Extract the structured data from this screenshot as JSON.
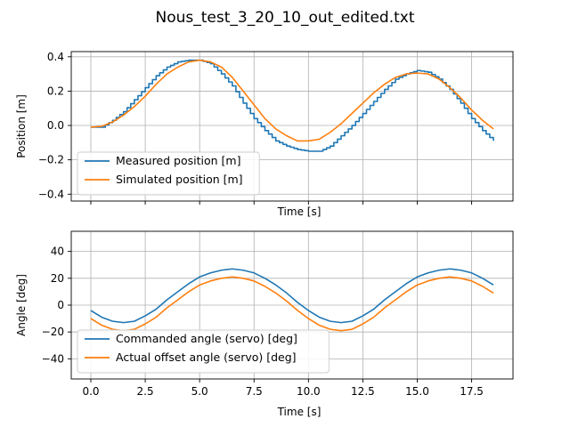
{
  "figure": {
    "title": "Nous_test_3_20_10_out_edited.txt"
  },
  "colors": {
    "series1": "#1f77b4",
    "series2": "#ff7f0e",
    "grid": "#b0b0b0",
    "axes": "#000000"
  },
  "chart_data": [
    {
      "type": "line",
      "xlabel": "Time [s]",
      "ylabel": "Position [m]",
      "xlim": [
        -0.9,
        19.4
      ],
      "ylim": [
        -0.44,
        0.43
      ],
      "xticks": [
        0.0,
        2.5,
        5.0,
        7.5,
        10.0,
        12.5,
        15.0,
        17.5
      ],
      "xtick_labels_visible": false,
      "yticks": [
        -0.4,
        -0.2,
        0.0,
        0.2,
        0.4
      ],
      "ytick_labels": [
        "−0.4",
        "−0.2",
        "0.0",
        "0.2",
        "0.4"
      ],
      "grid": true,
      "legend_position": "lower-left",
      "series": [
        {
          "name": "Measured position [m]",
          "style": "step",
          "x": [
            0.0,
            0.5,
            1.0,
            1.5,
            2.0,
            2.5,
            3.0,
            3.5,
            4.0,
            4.5,
            5.0,
            5.5,
            6.0,
            6.5,
            7.0,
            7.5,
            8.0,
            8.5,
            9.0,
            9.5,
            10.0,
            10.5,
            11.0,
            11.5,
            12.0,
            12.5,
            13.0,
            13.5,
            14.0,
            14.5,
            15.0,
            15.5,
            16.0,
            16.5,
            17.0,
            17.5,
            18.0,
            18.5
          ],
          "y": [
            -0.01,
            -0.01,
            0.03,
            0.08,
            0.15,
            0.22,
            0.29,
            0.34,
            0.37,
            0.38,
            0.38,
            0.36,
            0.3,
            0.23,
            0.13,
            0.04,
            -0.03,
            -0.09,
            -0.12,
            -0.14,
            -0.15,
            -0.15,
            -0.12,
            -0.06,
            0.0,
            0.07,
            0.14,
            0.21,
            0.27,
            0.3,
            0.32,
            0.31,
            0.27,
            0.21,
            0.13,
            0.04,
            -0.03,
            -0.09
          ]
        },
        {
          "name": "Simulated position [m]",
          "style": "line",
          "x": [
            0.0,
            0.5,
            1.0,
            1.5,
            2.0,
            2.5,
            3.0,
            3.5,
            4.0,
            4.5,
            5.0,
            5.5,
            6.0,
            6.5,
            7.0,
            7.5,
            8.0,
            8.5,
            9.0,
            9.5,
            10.0,
            10.5,
            11.0,
            11.5,
            12.0,
            12.5,
            13.0,
            13.5,
            14.0,
            14.5,
            15.0,
            15.5,
            16.0,
            16.5,
            17.0,
            17.5,
            18.0,
            18.5
          ],
          "y": [
            -0.01,
            -0.005,
            0.02,
            0.06,
            0.11,
            0.17,
            0.24,
            0.3,
            0.34,
            0.37,
            0.38,
            0.37,
            0.34,
            0.28,
            0.2,
            0.12,
            0.04,
            -0.02,
            -0.06,
            -0.09,
            -0.09,
            -0.08,
            -0.04,
            0.01,
            0.07,
            0.13,
            0.19,
            0.24,
            0.28,
            0.3,
            0.305,
            0.3,
            0.27,
            0.22,
            0.16,
            0.09,
            0.03,
            -0.02
          ]
        }
      ]
    },
    {
      "type": "line",
      "xlabel": "Time [s]",
      "ylabel": "Angle [deg]",
      "xlim": [
        -0.9,
        19.4
      ],
      "ylim": [
        -55,
        55
      ],
      "xticks": [
        0.0,
        2.5,
        5.0,
        7.5,
        10.0,
        12.5,
        15.0,
        17.5
      ],
      "xtick_labels": [
        "0.0",
        "2.5",
        "5.0",
        "7.5",
        "10.0",
        "12.5",
        "15.0",
        "17.5"
      ],
      "yticks": [
        -40,
        -20,
        0,
        20,
        40
      ],
      "ytick_labels": [
        "−40",
        "−20",
        "0",
        "20",
        "40"
      ],
      "grid": true,
      "legend_position": "lower-left",
      "series": [
        {
          "name": "Commanded angle (servo) [deg]",
          "style": "line",
          "x": [
            0.0,
            0.5,
            1.0,
            1.5,
            2.0,
            2.5,
            3.0,
            3.5,
            4.0,
            4.5,
            5.0,
            5.5,
            6.0,
            6.5,
            7.0,
            7.5,
            8.0,
            8.5,
            9.0,
            9.5,
            10.0,
            10.5,
            11.0,
            11.5,
            12.0,
            12.5,
            13.0,
            13.5,
            14.0,
            14.5,
            15.0,
            15.5,
            16.0,
            16.5,
            17.0,
            17.5,
            18.0,
            18.5
          ],
          "y": [
            -4,
            -9,
            -12,
            -13,
            -12,
            -8,
            -3,
            4,
            10,
            16,
            21,
            24,
            26,
            27,
            26,
            24,
            20,
            15,
            9,
            2,
            -4,
            -9,
            -12,
            -13,
            -12,
            -8,
            -3,
            4,
            10,
            16,
            21,
            24,
            26,
            27,
            26,
            24,
            20,
            15
          ]
        },
        {
          "name": "Actual offset angle (servo) [deg]",
          "style": "line",
          "x": [
            0.0,
            0.5,
            1.0,
            1.5,
            2.0,
            2.5,
            3.0,
            3.5,
            4.0,
            4.5,
            5.0,
            5.5,
            6.0,
            6.5,
            7.0,
            7.5,
            8.0,
            8.5,
            9.0,
            9.5,
            10.0,
            10.5,
            11.0,
            11.5,
            12.0,
            12.5,
            13.0,
            13.5,
            14.0,
            14.5,
            15.0,
            15.5,
            16.0,
            16.5,
            17.0,
            17.5,
            18.0,
            18.5
          ],
          "y": [
            -10,
            -15,
            -18,
            -19,
            -18,
            -14,
            -9,
            -2,
            4,
            10,
            15,
            18,
            20,
            21,
            20,
            18,
            14,
            9,
            3,
            -4,
            -10,
            -15,
            -18,
            -19,
            -18,
            -14,
            -9,
            -2,
            4,
            10,
            15,
            18,
            20,
            21,
            20,
            18,
            14,
            9
          ]
        }
      ]
    }
  ]
}
